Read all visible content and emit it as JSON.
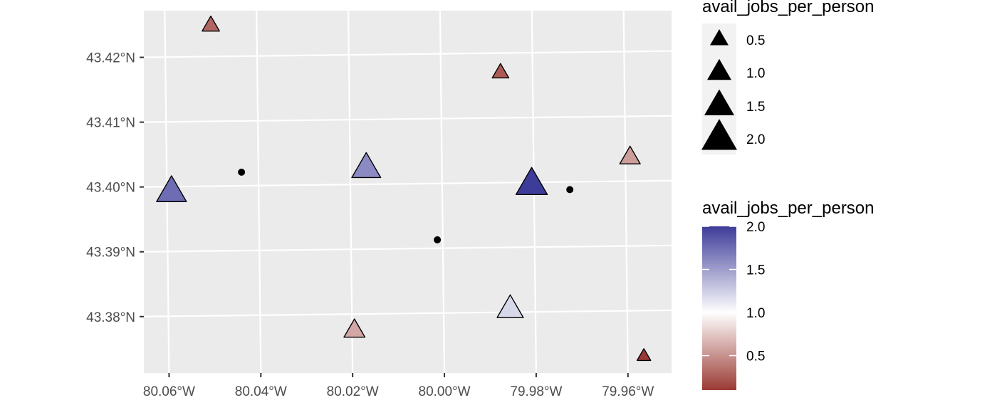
{
  "chart_data": {
    "type": "scatter",
    "title": "",
    "xlabel": "",
    "ylabel": "",
    "xlim": [
      -80.0655,
      -79.9505
    ],
    "ylim": [
      43.3713,
      43.4272
    ],
    "x_ticks": [
      {
        "value": -80.06,
        "label": "80.06°W"
      },
      {
        "value": -80.04,
        "label": "80.04°W"
      },
      {
        "value": -80.02,
        "label": "80.02°W"
      },
      {
        "value": -80.0,
        "label": "80.00°W"
      },
      {
        "value": -79.98,
        "label": "79.98°W"
      },
      {
        "value": -79.96,
        "label": "79.96°W"
      }
    ],
    "y_ticks": [
      {
        "value": 43.38,
        "label": "43.38°N"
      },
      {
        "value": 43.39,
        "label": "43.39°N"
      },
      {
        "value": 43.4,
        "label": "43.40°N"
      },
      {
        "value": 43.41,
        "label": "43.41°N"
      },
      {
        "value": 43.42,
        "label": "43.42°N"
      }
    ],
    "graticule_x": [
      -80.06,
      -80.04,
      -80.02,
      -80.0,
      -79.98,
      -79.96
    ],
    "graticule_y": [
      43.38,
      43.39,
      43.4,
      43.41,
      43.42
    ],
    "grid": true,
    "panel_color": "#ebebeb",
    "gridline_color": "#ffffff",
    "triangles": [
      {
        "lon": -80.059,
        "lat": 43.3992,
        "jobs": 1.75
      },
      {
        "lon": -80.05,
        "lat": 43.4248,
        "jobs": 0.3
      },
      {
        "lon": -80.0165,
        "lat": 43.4025,
        "jobs": 1.6
      },
      {
        "lon": -80.0195,
        "lat": 43.3775,
        "jobs": 0.6
      },
      {
        "lon": -79.987,
        "lat": 43.417,
        "jobs": 0.25
      },
      {
        "lon": -79.9805,
        "lat": 43.3997,
        "jobs": 2.0
      },
      {
        "lon": -79.9855,
        "lat": 43.3805,
        "jobs": 1.2
      },
      {
        "lon": -79.959,
        "lat": 43.4037,
        "jobs": 0.55
      },
      {
        "lon": -79.9565,
        "lat": 43.373,
        "jobs": 0.1
      }
    ],
    "points": [
      {
        "lon": -80.0437,
        "lat": 43.4021
      },
      {
        "lon": -80.0012,
        "lat": 43.3913
      },
      {
        "lon": -79.9722,
        "lat": 43.3988
      }
    ],
    "point_color": "#000000",
    "size_legend": {
      "title": "avail_jobs_per_person",
      "entries": [
        {
          "value": 0.5,
          "label": "0.5"
        },
        {
          "value": 1.0,
          "label": "1.0"
        },
        {
          "value": 1.5,
          "label": "1.5"
        },
        {
          "value": 2.0,
          "label": "2.0"
        }
      ]
    },
    "color_legend": {
      "title": "avail_jobs_per_person",
      "min": 0.1,
      "max": 2.0,
      "midpoint": 1.0,
      "low_color": "#9b3a34",
      "mid_color": "#ffffff",
      "high_color": "#3e3c99",
      "ticks": [
        {
          "value": 0.5,
          "label": "0.5"
        },
        {
          "value": 1.0,
          "label": "1.0"
        },
        {
          "value": 1.5,
          "label": "1.5"
        },
        {
          "value": 2.0,
          "label": "2.0"
        }
      ]
    },
    "legend_position": "right"
  }
}
